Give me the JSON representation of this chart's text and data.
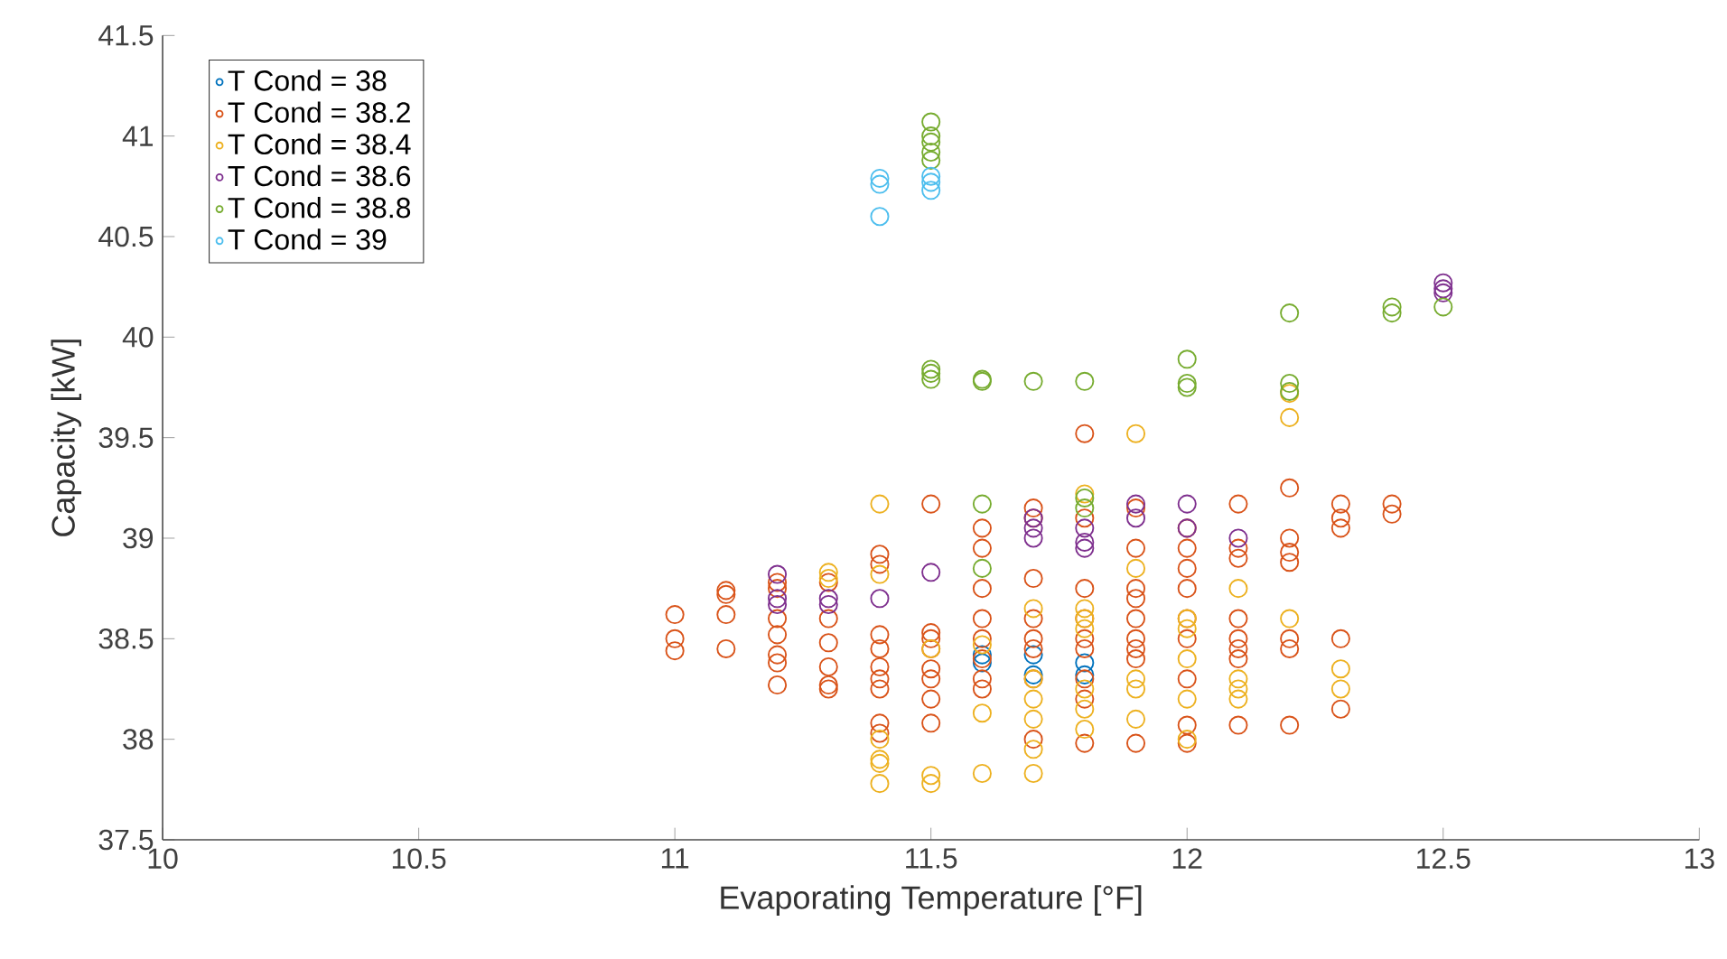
{
  "chart_data": {
    "type": "scatter",
    "xlabel": "Evaporating Temperature [°F]",
    "ylabel": "Capacity [kW]",
    "xlim": [
      10,
      13
    ],
    "ylim": [
      37.5,
      41.5
    ],
    "xticks": [
      10,
      10.5,
      11,
      11.5,
      12,
      12.5,
      13
    ],
    "yticks": [
      37.5,
      38,
      38.5,
      39,
      39.5,
      40,
      40.5,
      41,
      41.5
    ],
    "marker": "circle",
    "legend": "top left",
    "series": [
      {
        "name": "T Cond = 38",
        "color": "#0072bd",
        "x": [
          11.6,
          11.6,
          11.7,
          11.7,
          11.8,
          11.8
        ],
        "values": [
          38.38,
          38.42,
          38.32,
          38.42,
          38.32,
          38.38
        ]
      },
      {
        "name": "T Cond = 38.2",
        "color": "#d95319",
        "x": [
          11,
          11,
          11,
          11.1,
          11.1,
          11.1,
          11.1,
          11.2,
          11.2,
          11.2,
          11.2,
          11.2,
          11.2,
          11.2,
          11.3,
          11.3,
          11.3,
          11.3,
          11.3,
          11.3,
          11.4,
          11.4,
          11.4,
          11.4,
          11.4,
          11.4,
          11.4,
          11.4,
          11.4,
          11.5,
          11.5,
          11.5,
          11.5,
          11.5,
          11.5,
          11.5,
          11.5,
          11.6,
          11.6,
          11.6,
          11.6,
          11.6,
          11.6,
          11.6,
          11.6,
          11.7,
          11.7,
          11.7,
          11.7,
          11.7,
          11.7,
          11.7,
          11.7,
          11.8,
          11.8,
          11.8,
          11.8,
          11.8,
          11.8,
          11.8,
          11.8,
          11.8,
          11.9,
          11.9,
          11.9,
          11.9,
          11.9,
          11.9,
          11.9,
          11.9,
          11.9,
          12,
          12,
          12,
          12,
          12,
          12,
          12,
          12,
          12,
          12.1,
          12.1,
          12.1,
          12.1,
          12.1,
          12.1,
          12.1,
          12.1,
          12.2,
          12.2,
          12.2,
          12.2,
          12.2,
          12.2,
          12.2,
          12.3,
          12.3,
          12.3,
          12.3,
          12.3,
          12.4,
          12.4
        ],
        "values": [
          38.62,
          38.5,
          38.44,
          38.74,
          38.72,
          38.62,
          38.45,
          38.78,
          38.75,
          38.6,
          38.52,
          38.42,
          38.38,
          38.27,
          38.78,
          38.6,
          38.48,
          38.36,
          38.27,
          38.25,
          38.92,
          38.87,
          38.52,
          38.45,
          38.36,
          38.3,
          38.25,
          38.08,
          38.03,
          39.17,
          38.53,
          38.5,
          38.45,
          38.35,
          38.3,
          38.2,
          38.08,
          39.05,
          38.95,
          38.75,
          38.6,
          38.5,
          38.4,
          38.3,
          38.25,
          39.15,
          39.1,
          38.8,
          38.6,
          38.5,
          38.45,
          38.3,
          38.0,
          39.52,
          39.1,
          38.75,
          38.6,
          38.5,
          38.45,
          38.3,
          38.2,
          37.98,
          39.15,
          38.95,
          38.75,
          38.7,
          38.6,
          38.5,
          38.45,
          38.4,
          37.98,
          39.05,
          38.95,
          38.85,
          38.75,
          38.6,
          38.5,
          38.3,
          38.07,
          37.98,
          39.17,
          38.95,
          38.9,
          38.6,
          38.5,
          38.45,
          38.4,
          38.07,
          39.25,
          39.0,
          38.93,
          38.88,
          38.5,
          38.45,
          38.07,
          39.17,
          39.1,
          39.05,
          38.5,
          38.15,
          39.17,
          39.12
        ]
      },
      {
        "name": "T Cond = 38.4",
        "color": "#edb120",
        "x": [
          11.3,
          11.3,
          11.4,
          11.4,
          11.4,
          11.4,
          11.4,
          11.4,
          11.5,
          11.5,
          11.5,
          11.6,
          11.6,
          11.6,
          11.7,
          11.7,
          11.7,
          11.7,
          11.7,
          11.7,
          11.8,
          11.8,
          11.8,
          11.8,
          11.8,
          11.8,
          11.8,
          11.9,
          11.9,
          11.9,
          11.9,
          11.9,
          12,
          12,
          12,
          12,
          12,
          12.1,
          12.1,
          12.1,
          12.1,
          12.2,
          12.2,
          12.2,
          12.3,
          12.3
        ],
        "values": [
          38.83,
          38.8,
          39.17,
          38.82,
          38.0,
          37.9,
          37.88,
          37.78,
          37.82,
          37.78,
          38.45,
          38.47,
          38.13,
          37.83,
          38.65,
          38.3,
          38.2,
          38.1,
          37.95,
          37.83,
          39.22,
          38.65,
          38.6,
          38.55,
          38.25,
          38.15,
          38.05,
          39.52,
          38.85,
          38.3,
          38.25,
          38.1,
          38.6,
          38.55,
          38.4,
          38.2,
          38.0,
          38.75,
          38.3,
          38.25,
          38.2,
          39.72,
          39.6,
          38.6,
          38.35,
          38.25
        ]
      },
      {
        "name": "T Cond = 38.6",
        "color": "#7e2f8e",
        "x": [
          11.2,
          11.2,
          11.2,
          11.3,
          11.3,
          11.4,
          11.5,
          11.7,
          11.7,
          11.7,
          11.8,
          11.8,
          11.8,
          11.9,
          11.9,
          12,
          12,
          12.1,
          12.5,
          12.5,
          12.5
        ],
        "values": [
          38.82,
          38.7,
          38.67,
          38.7,
          38.67,
          38.7,
          38.83,
          39.1,
          39.05,
          39.0,
          39.05,
          38.98,
          38.95,
          39.17,
          39.1,
          39.17,
          39.05,
          39.0,
          40.27,
          40.24,
          40.22
        ]
      },
      {
        "name": "T Cond = 38.8",
        "color": "#77ac30",
        "x": [
          11.5,
          11.5,
          11.5,
          11.5,
          11.5,
          11.5,
          11.5,
          11.5,
          11.6,
          11.6,
          11.6,
          11.6,
          11.7,
          11.8,
          11.8,
          11.8,
          12,
          12,
          12,
          12.2,
          12.2,
          12.2,
          12.4,
          12.4,
          12.5
        ],
        "values": [
          41.07,
          41.0,
          40.97,
          40.92,
          40.88,
          39.84,
          39.82,
          39.79,
          39.79,
          39.78,
          39.17,
          38.85,
          39.78,
          39.78,
          39.2,
          39.15,
          39.89,
          39.77,
          39.75,
          40.12,
          39.77,
          39.73,
          40.15,
          40.12,
          40.15
        ]
      },
      {
        "name": "T Cond = 39",
        "color": "#4dbeee",
        "x": [
          11.4,
          11.4,
          11.4,
          11.5,
          11.5,
          11.5
        ],
        "values": [
          40.79,
          40.76,
          40.6,
          40.8,
          40.73,
          40.77
        ]
      }
    ]
  }
}
